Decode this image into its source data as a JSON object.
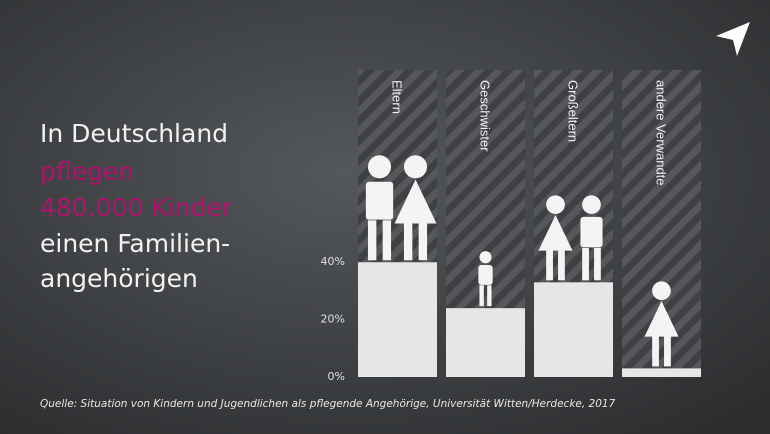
{
  "headline": [
    "In Deutschland",
    "pflegen",
    "480.000 Kinder",
    "einen Familien-",
    "angehörigen"
  ],
  "source": "Quelle: Situation von Kindern und Jugendlichen als pflegende Angehörige, Universität Witten/Herdecke, 2017",
  "chart_data": {
    "type": "bar",
    "categories": [
      "Eltern",
      "Geschwister",
      "Großeltern",
      "andere Verwandte"
    ],
    "values": [
      40,
      24,
      33,
      3
    ],
    "color": "#e6e6e6",
    "ylim": [
      0,
      107
    ],
    "yticks": [
      {
        "value": 0,
        "label": "0%"
      },
      {
        "value": 20,
        "label": "20%"
      },
      {
        "value": 40,
        "label": "40%"
      }
    ]
  }
}
